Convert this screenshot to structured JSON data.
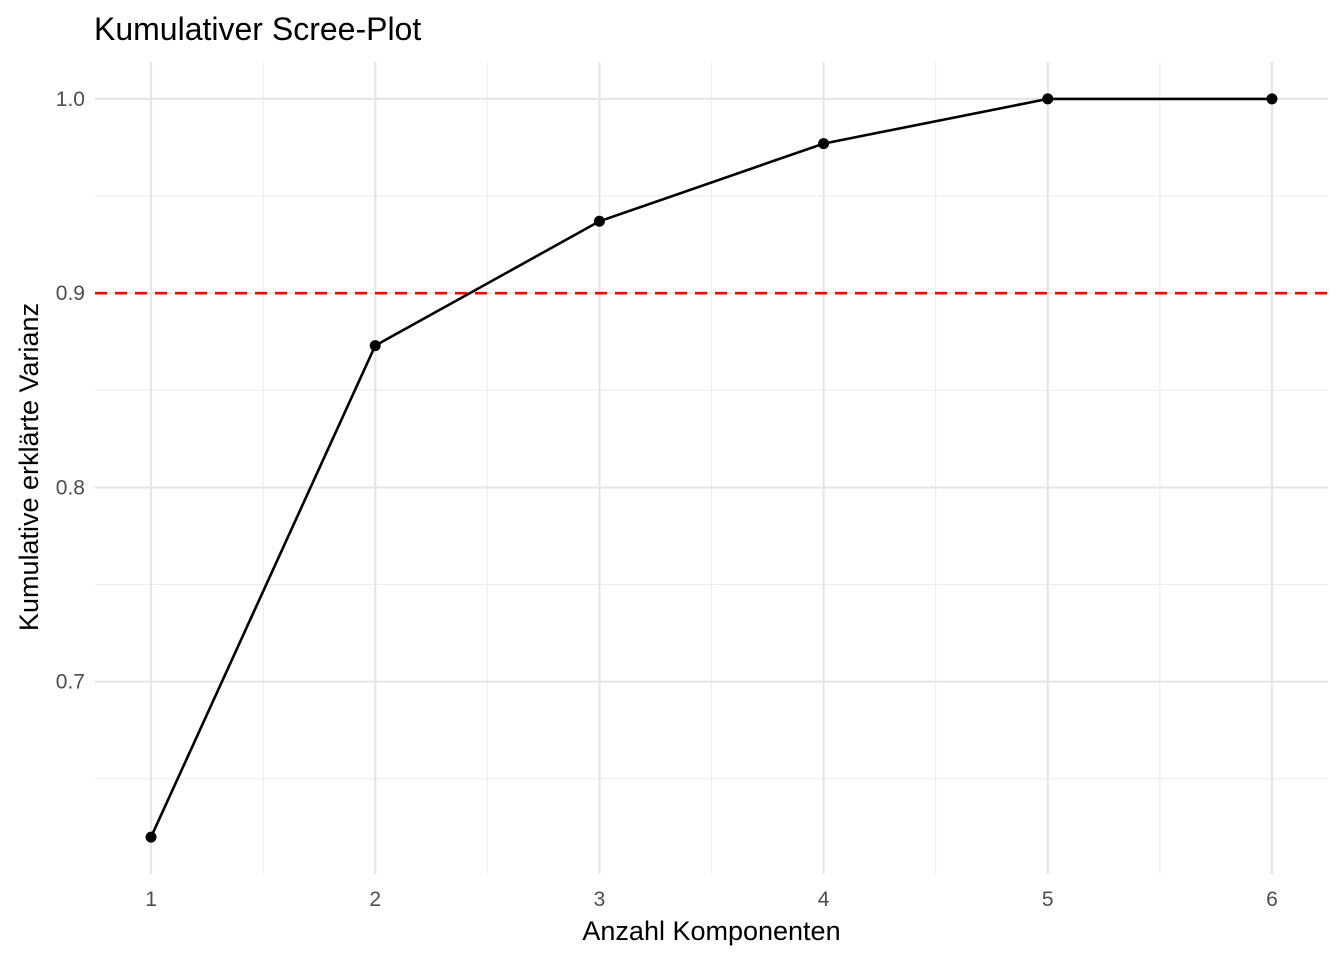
{
  "chart_data": {
    "type": "line",
    "title": "Kumulativer Scree-Plot",
    "xlabel": "Anzahl Komponenten",
    "ylabel": "Kumulative erklärte Varianz",
    "x": [
      1,
      2,
      3,
      4,
      5,
      6
    ],
    "series": [
      {
        "values": [
          0.62,
          0.873,
          0.937,
          0.977,
          1.0,
          1.0
        ]
      }
    ],
    "xticks": [
      1,
      2,
      3,
      4,
      5,
      6
    ],
    "xtick_labels": [
      "1",
      "2",
      "3",
      "4",
      "5",
      "6"
    ],
    "yticks": [
      0.7,
      0.8,
      0.9,
      1.0
    ],
    "ytick_labels": [
      "0.7",
      "0.8",
      "0.9",
      "1.0"
    ],
    "xlim": [
      0.75,
      6.25
    ],
    "ylim": [
      0.601,
      1.019
    ],
    "reference_line": {
      "orientation": "horizontal",
      "y": 0.9,
      "style": "dashed",
      "color": "#ff0000"
    },
    "grid": true,
    "legend": "none",
    "colors": {
      "line": "#000000",
      "point": "#000000",
      "reference": "#ff0000"
    }
  }
}
